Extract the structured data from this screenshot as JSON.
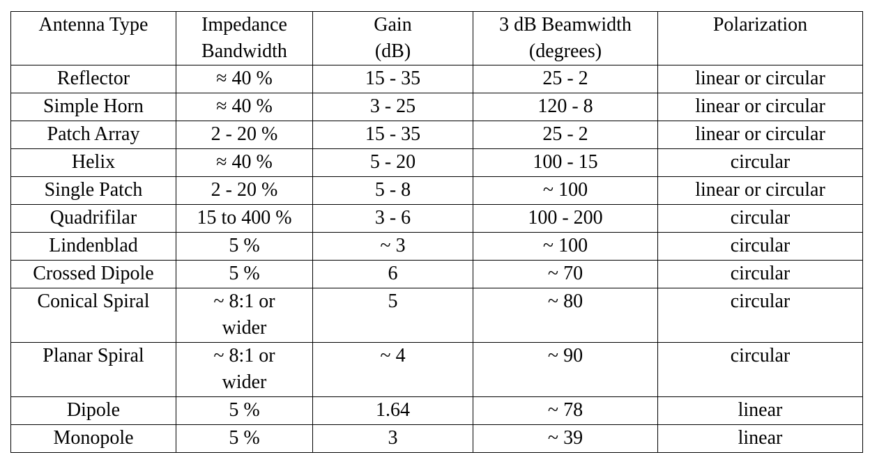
{
  "table": {
    "header": [
      "Antenna Type",
      "Impedance\nBandwidth",
      "Gain\n(dB)",
      "3 dB Beamwidth\n(degrees)",
      "Polarization"
    ],
    "rows": [
      [
        "Reflector",
        "≈ 40 %",
        "15 - 35",
        "25 - 2",
        "linear or circular"
      ],
      [
        "Simple Horn",
        "≈ 40 %",
        "3 - 25",
        "120 - 8",
        "linear or circular"
      ],
      [
        "Patch Array",
        "2 - 20 %",
        "15 - 35",
        "25 - 2",
        "linear or circular"
      ],
      [
        "Helix",
        "≈ 40 %",
        "5 - 20",
        "100 - 15",
        "circular"
      ],
      [
        "Single Patch",
        "2 - 20 %",
        "5 - 8",
        "~ 100",
        "linear or circular"
      ],
      [
        "Quadrifilar",
        "15 to 400 %",
        "3 - 6",
        "100 - 200",
        "circular"
      ],
      [
        "Lindenblad",
        "5 %",
        "~ 3",
        "~ 100",
        "circular"
      ],
      [
        "Crossed Dipole",
        "5 %",
        "6",
        "~ 70",
        "circular"
      ],
      [
        "Conical Spiral",
        "~ 8:1 or\nwider",
        "5",
        "~ 80",
        "circular"
      ],
      [
        "Planar Spiral",
        "~ 8:1 or\nwider",
        "~ 4",
        "~ 90",
        "circular"
      ],
      [
        "Dipole",
        "5 %",
        "1.64",
        "~ 78",
        "linear"
      ],
      [
        "Monopole",
        "5 %",
        "3",
        "~ 39",
        "linear"
      ]
    ]
  }
}
